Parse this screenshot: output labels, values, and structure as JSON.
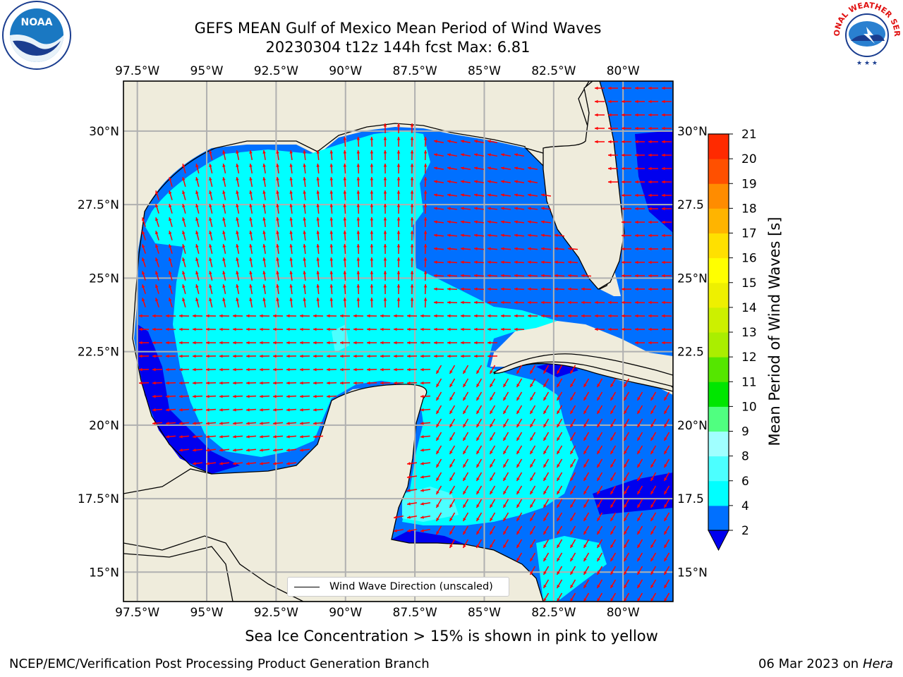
{
  "title": {
    "line1": "GEFS MEAN Gulf of Mexico Mean Period of Wind Waves",
    "line2": "20230304 t12z 144h fcst   Max: 6.81"
  },
  "map": {
    "lon_labels": [
      "97.5°W",
      "95°W",
      "92.5°W",
      "90°W",
      "87.5°W",
      "85°W",
      "82.5°W",
      "80°W"
    ],
    "lon_values": [
      -97.5,
      -95,
      -92.5,
      -90,
      -87.5,
      -85,
      -82.5,
      -80
    ],
    "lat_labels_left": [
      "30°N",
      "27.5°N",
      "25°N",
      "22.5°N",
      "20°N",
      "17.5°N",
      "15°N"
    ],
    "lat_labels_right": [
      "30°N",
      "27.5",
      "25°N",
      "22.5",
      "20°N",
      "17.5",
      "15°N"
    ],
    "lat_values": [
      30,
      27.5,
      25,
      22.5,
      20,
      17.5,
      15
    ],
    "extent": {
      "lon_min": -98,
      "lon_max": -78.2,
      "lat_min": 14,
      "lat_max": 31.7
    },
    "legend": "Wind Wave Direction (unscaled)",
    "colors": {
      "land": "#efecdc",
      "coast": "#000000",
      "grid": "#b0b0b0",
      "arrow": "#ff0000"
    }
  },
  "colorbar": {
    "title": "Mean Period of Wind Waves [s]",
    "levels": [
      "2",
      "4",
      "6",
      "8",
      "9",
      "10",
      "11",
      "12",
      "13",
      "14",
      "15",
      "16",
      "17",
      "18",
      "19",
      "20",
      "21"
    ],
    "colors": [
      "#0070ff",
      "#00ffff",
      "#4cffff",
      "#a0ffff",
      "#50ff80",
      "#00e600",
      "#55e600",
      "#aaee00",
      "#ccf000",
      "#eef000",
      "#ffff00",
      "#ffe000",
      "#ffb400",
      "#ff8c00",
      "#ff5000",
      "#ff2a00"
    ],
    "under_color": "#0000ee"
  },
  "subcaption": "Sea Ice Concentration > 15% is shown in pink to yellow",
  "footer": {
    "left": "NCEP/EMC/Verification Post Processing Product Generation Branch",
    "date": "06 Mar 2023 on",
    "host": "Hera"
  },
  "logos": {
    "left": "NOAA",
    "right": "NATIONAL WEATHER SERVICE"
  }
}
